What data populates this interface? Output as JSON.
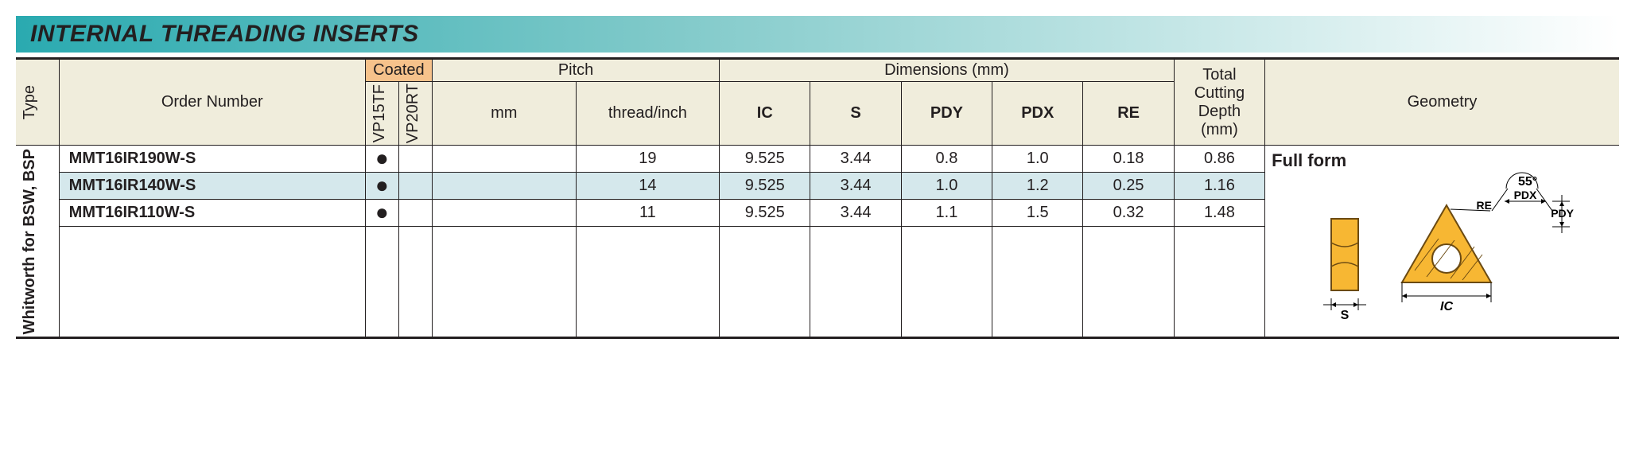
{
  "title": "INTERNAL THREADING INSERTS",
  "headers": {
    "type": "Type",
    "order": "Order Number",
    "coated": "Coated",
    "coat1": "VP15TF",
    "coat2": "VP20RT",
    "pitch": "Pitch",
    "pitch_mm": "mm",
    "pitch_tpi": "thread/inch",
    "dims": "Dimensions (mm)",
    "ic": "IC",
    "s": "S",
    "pdy": "PDY",
    "pdx": "PDX",
    "re": "RE",
    "depth": "Total Cutting Depth (mm)",
    "geometry": "Geometry"
  },
  "type_label": "Whitworth for BSW, BSP",
  "geometry_label": "Full form",
  "diagram": {
    "angle": "55°",
    "pdx": "PDX",
    "pdy": "PDY",
    "re": "RE",
    "ic": "IC",
    "s": "S"
  },
  "rows": [
    {
      "order": "MMT16IR190W-S",
      "vp15tf": true,
      "vp20rt": false,
      "mm": "",
      "tpi": "19",
      "ic": "9.525",
      "s": "3.44",
      "pdy": "0.8",
      "pdx": "1.0",
      "re": "0.18",
      "depth": "0.86",
      "hl": false
    },
    {
      "order": "MMT16IR140W-S",
      "vp15tf": true,
      "vp20rt": false,
      "mm": "",
      "tpi": "14",
      "ic": "9.525",
      "s": "3.44",
      "pdy": "1.0",
      "pdx": "1.2",
      "re": "0.25",
      "depth": "1.16",
      "hl": true
    },
    {
      "order": "MMT16IR110W-S",
      "vp15tf": true,
      "vp20rt": false,
      "mm": "",
      "tpi": "11",
      "ic": "9.525",
      "s": "3.44",
      "pdy": "1.1",
      "pdx": "1.5",
      "re": "0.32",
      "depth": "1.48",
      "hl": false
    }
  ],
  "colors": {
    "header_bg": "#f0eddc",
    "coated_bg": "#f6c28b",
    "highlight_bg": "#d5e8ec",
    "border": "#231f20",
    "title_grad_start": "#2aaab0",
    "insert_fill": "#f7b733",
    "insert_stroke": "#6b4a12"
  }
}
